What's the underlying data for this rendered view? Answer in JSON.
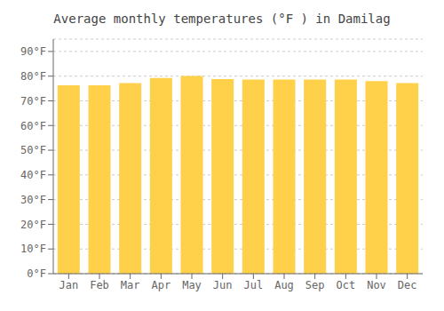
{
  "chart_data": {
    "type": "bar",
    "title": "Average monthly temperatures (°F ) in Damilag",
    "categories": [
      "Jan",
      "Feb",
      "Mar",
      "Apr",
      "May",
      "Jun",
      "Jul",
      "Aug",
      "Sep",
      "Oct",
      "Nov",
      "Dec"
    ],
    "values": [
      76.3,
      76.3,
      77.2,
      79.3,
      80.1,
      78.8,
      78.6,
      78.6,
      78.6,
      78.6,
      78.0,
      77.2
    ],
    "color": "#FFD04A",
    "ylim": [
      0,
      95
    ],
    "yticks": [
      {
        "value": 0,
        "label": "0°F"
      },
      {
        "value": 10,
        "label": "10°F"
      },
      {
        "value": 20,
        "label": "20°F"
      },
      {
        "value": 30,
        "label": "30°F"
      },
      {
        "value": 40,
        "label": "40°F"
      },
      {
        "value": 50,
        "label": "50°F"
      },
      {
        "value": 60,
        "label": "60°F"
      },
      {
        "value": 70,
        "label": "70°F"
      },
      {
        "value": 80,
        "label": "80°F"
      },
      {
        "value": 90,
        "label": "90°F"
      }
    ],
    "grid": true
  }
}
